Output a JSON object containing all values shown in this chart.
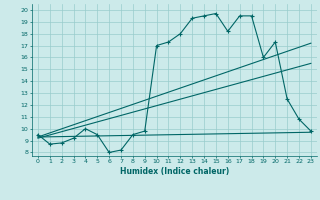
{
  "xlabel": "Humidex (Indice chaleur)",
  "bg_color": "#cceaea",
  "grid_color": "#99cccc",
  "line_color": "#006666",
  "xlim": [
    -0.5,
    23.5
  ],
  "ylim": [
    7.7,
    20.5
  ],
  "xticks": [
    0,
    1,
    2,
    3,
    4,
    5,
    6,
    7,
    8,
    9,
    10,
    11,
    12,
    13,
    14,
    15,
    16,
    17,
    18,
    19,
    20,
    21,
    22,
    23
  ],
  "yticks": [
    8,
    9,
    10,
    11,
    12,
    13,
    14,
    15,
    16,
    17,
    18,
    19,
    20
  ],
  "main_x": [
    0,
    1,
    2,
    3,
    4,
    5,
    6,
    7,
    8,
    9,
    10,
    11,
    12,
    13,
    14,
    15,
    16,
    17,
    18,
    19,
    20,
    21,
    22,
    23
  ],
  "main_y": [
    9.5,
    8.7,
    8.8,
    9.2,
    10.0,
    9.5,
    8.0,
    8.2,
    9.5,
    9.8,
    17.0,
    17.3,
    18.0,
    19.3,
    19.5,
    19.7,
    18.2,
    19.5,
    19.5,
    16.0,
    17.3,
    12.5,
    10.8,
    9.8
  ],
  "line2_x": [
    0,
    23
  ],
  "line2_y": [
    9.3,
    17.2
  ],
  "line3_x": [
    0,
    23
  ],
  "line3_y": [
    9.2,
    15.5
  ],
  "line4_x": [
    0,
    23
  ],
  "line4_y": [
    9.3,
    9.7
  ]
}
